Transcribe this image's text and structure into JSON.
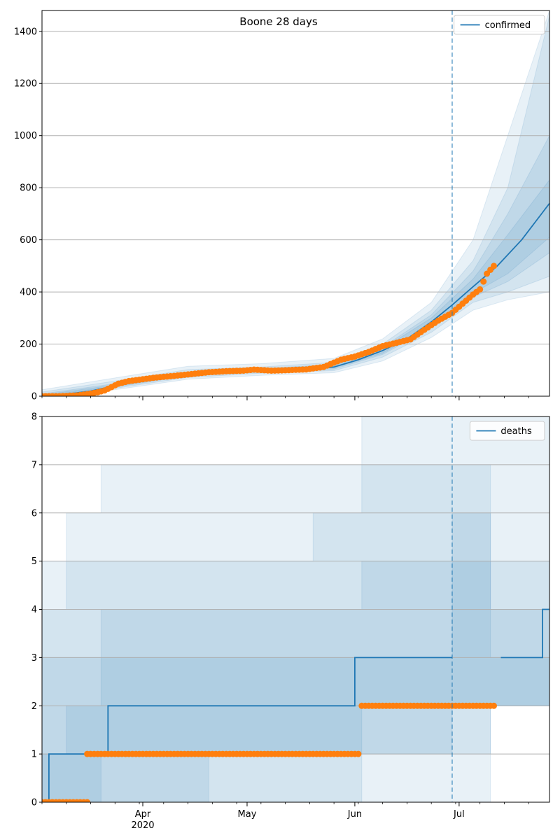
{
  "colors": {
    "model": "#1f77b4",
    "observed": "#ff7f0e",
    "band": "#1f77b4",
    "grid": "#b0b0b0",
    "vline": "#1f77b4"
  },
  "chart_data": [
    {
      "type": "line",
      "title": "Boone 28 days",
      "legend": [
        "confirmed"
      ],
      "legend_position": "top-right",
      "grid": "y",
      "x_range": [
        "2020-03-03",
        "2020-07-27"
      ],
      "x_ticks": [
        {
          "date": "2020-04-01",
          "label": "Apr"
        },
        {
          "date": "2020-05-01",
          "label": "May"
        },
        {
          "date": "2020-06-01",
          "label": "Jun"
        },
        {
          "date": "2020-07-01",
          "label": "Jul"
        }
      ],
      "x_sublabel": "2020",
      "forecast_start": "2020-06-29",
      "ylim": [
        0,
        1480
      ],
      "y_ticks": [
        0,
        200,
        400,
        600,
        800,
        1000,
        1200,
        1400
      ],
      "series": [
        {
          "name": "confirmed",
          "kind": "model",
          "x": [
            "2020-03-03",
            "2020-03-10",
            "2020-03-17",
            "2020-03-24",
            "2020-03-31",
            "2020-04-07",
            "2020-04-14",
            "2020-04-21",
            "2020-04-28",
            "2020-05-05",
            "2020-05-12",
            "2020-05-19",
            "2020-05-26",
            "2020-06-02",
            "2020-06-09",
            "2020-06-16",
            "2020-06-23",
            "2020-06-29",
            "2020-07-05",
            "2020-07-12",
            "2020-07-19",
            "2020-07-27"
          ],
          "y": [
            2,
            8,
            20,
            40,
            60,
            72,
            84,
            92,
            97,
            100,
            100,
            103,
            112,
            140,
            175,
            220,
            285,
            350,
            420,
            500,
            600,
            740
          ]
        },
        {
          "name": "observed confirmed",
          "kind": "observed",
          "x": [
            "2020-03-03",
            "2020-03-08",
            "2020-03-13",
            "2020-03-16",
            "2020-03-19",
            "2020-03-21",
            "2020-03-23",
            "2020-03-25",
            "2020-03-28",
            "2020-04-01",
            "2020-04-05",
            "2020-04-10",
            "2020-04-15",
            "2020-04-20",
            "2020-04-25",
            "2020-04-30",
            "2020-05-03",
            "2020-05-08",
            "2020-05-13",
            "2020-05-18",
            "2020-05-23",
            "2020-05-28",
            "2020-06-01",
            "2020-06-05",
            "2020-06-09",
            "2020-06-13",
            "2020-06-17",
            "2020-06-21",
            "2020-06-25",
            "2020-06-29",
            "2020-07-02",
            "2020-07-05",
            "2020-07-07",
            "2020-07-09",
            "2020-07-11"
          ],
          "y": [
            0,
            0,
            3,
            8,
            15,
            22,
            35,
            48,
            58,
            65,
            72,
            78,
            85,
            92,
            96,
            98,
            102,
            98,
            100,
            103,
            112,
            140,
            152,
            170,
            192,
            205,
            218,
            255,
            290,
            320,
            355,
            390,
            410,
            470,
            500
          ]
        }
      ],
      "bands": [
        {
          "x": [
            "2020-03-03",
            "2020-03-24",
            "2020-04-14",
            "2020-05-05",
            "2020-05-26",
            "2020-06-09",
            "2020-06-23",
            "2020-07-05",
            "2020-07-15",
            "2020-07-27"
          ],
          "lower": [
            0,
            25,
            65,
            80,
            90,
            135,
            225,
            330,
            370,
            400
          ],
          "upper": [
            25,
            70,
            115,
            125,
            145,
            220,
            360,
            600,
            1000,
            1480
          ]
        },
        {
          "x": [
            "2020-03-03",
            "2020-03-24",
            "2020-04-14",
            "2020-05-05",
            "2020-05-26",
            "2020-06-09",
            "2020-06-23",
            "2020-07-05",
            "2020-07-15",
            "2020-07-27"
          ],
          "lower": [
            0,
            30,
            72,
            88,
            98,
            150,
            245,
            360,
            400,
            460
          ],
          "upper": [
            16,
            58,
            102,
            112,
            130,
            200,
            330,
            520,
            800,
            1460
          ]
        },
        {
          "x": [
            "2020-03-03",
            "2020-03-24",
            "2020-04-14",
            "2020-05-05",
            "2020-05-26",
            "2020-06-09",
            "2020-06-23",
            "2020-07-05",
            "2020-07-15",
            "2020-07-27"
          ],
          "lower": [
            0,
            35,
            78,
            92,
            104,
            160,
            262,
            380,
            440,
            550
          ],
          "upper": [
            9,
            48,
            92,
            106,
            122,
            188,
            312,
            480,
            700,
            1000
          ]
        },
        {
          "x": [
            "2020-03-03",
            "2020-03-24",
            "2020-04-14",
            "2020-05-05",
            "2020-05-26",
            "2020-06-09",
            "2020-06-23",
            "2020-07-05",
            "2020-07-15",
            "2020-07-27"
          ],
          "lower": [
            0,
            38,
            81,
            95,
            108,
            165,
            272,
            395,
            470,
            610
          ],
          "upper": [
            5,
            43,
            88,
            103,
            118,
            182,
            300,
            450,
            620,
            830
          ]
        }
      ]
    },
    {
      "type": "line",
      "title": "",
      "legend": [
        "deaths"
      ],
      "legend_position": "top-right",
      "grid": "y",
      "x_range": [
        "2020-03-03",
        "2020-07-27"
      ],
      "x_ticks": [
        {
          "date": "2020-04-01",
          "label": "Apr"
        },
        {
          "date": "2020-05-01",
          "label": "May"
        },
        {
          "date": "2020-06-01",
          "label": "Jun"
        },
        {
          "date": "2020-07-01",
          "label": "Jul"
        }
      ],
      "x_sublabel": "2020",
      "forecast_start": "2020-06-29",
      "ylim": [
        0,
        8
      ],
      "y_ticks": [
        0,
        1,
        2,
        3,
        4,
        5,
        6,
        7,
        8
      ],
      "series": [
        {
          "name": "deaths",
          "kind": "model-step",
          "x": [
            "2020-03-03",
            "2020-03-05",
            "2020-03-22",
            "2020-06-01",
            "2020-06-29"
          ],
          "y": [
            0,
            1,
            2,
            3,
            3
          ]
        },
        {
          "name": "deaths forecast",
          "kind": "model-step",
          "x": [
            "2020-07-13",
            "2020-07-25",
            "2020-07-27"
          ],
          "y": [
            3,
            4,
            4
          ]
        },
        {
          "name": "observed deaths",
          "kind": "observed-range",
          "ranges": [
            {
              "from": "2020-03-03",
              "to": "2020-03-16",
              "y": 0
            },
            {
              "from": "2020-03-16",
              "to": "2020-06-02",
              "y": 1
            },
            {
              "from": "2020-06-03",
              "to": "2020-07-11",
              "y": 2
            }
          ]
        }
      ],
      "bands": [
        {
          "x": [
            "2020-03-03",
            "2020-03-10",
            "2020-03-20",
            "2020-04-20",
            "2020-05-20",
            "2020-06-03",
            "2020-06-29",
            "2020-07-10",
            "2020-07-27"
          ],
          "lower": [
            0,
            0,
            0,
            0,
            0,
            0,
            0,
            2,
            2
          ],
          "upper": [
            5,
            6,
            7,
            7,
            7,
            8,
            8,
            8,
            8
          ]
        },
        {
          "x": [
            "2020-03-03",
            "2020-03-10",
            "2020-03-20",
            "2020-04-20",
            "2020-05-20",
            "2020-06-03",
            "2020-06-29",
            "2020-07-10",
            "2020-07-27"
          ],
          "lower": [
            0,
            0,
            0,
            0,
            0,
            1,
            1,
            2,
            2
          ],
          "upper": [
            4,
            5,
            5,
            5,
            6,
            7,
            7,
            5,
            8
          ]
        },
        {
          "x": [
            "2020-03-03",
            "2020-03-10",
            "2020-03-20",
            "2020-04-20",
            "2020-05-20",
            "2020-06-03",
            "2020-06-29",
            "2020-07-10",
            "2020-07-27"
          ],
          "lower": [
            0,
            0,
            0,
            1,
            1,
            1,
            2,
            2,
            2
          ],
          "upper": [
            3,
            3,
            4,
            4,
            4,
            5,
            6,
            4,
            5
          ]
        },
        {
          "x": [
            "2020-03-03",
            "2020-03-10",
            "2020-03-20",
            "2020-04-20",
            "2020-05-20",
            "2020-06-03",
            "2020-06-29",
            "2020-07-10",
            "2020-07-27"
          ],
          "lower": [
            0,
            0,
            1,
            1,
            1,
            2,
            2,
            2,
            2
          ],
          "upper": [
            1,
            2,
            3,
            3,
            3,
            3,
            5,
            3,
            4
          ]
        }
      ]
    }
  ]
}
